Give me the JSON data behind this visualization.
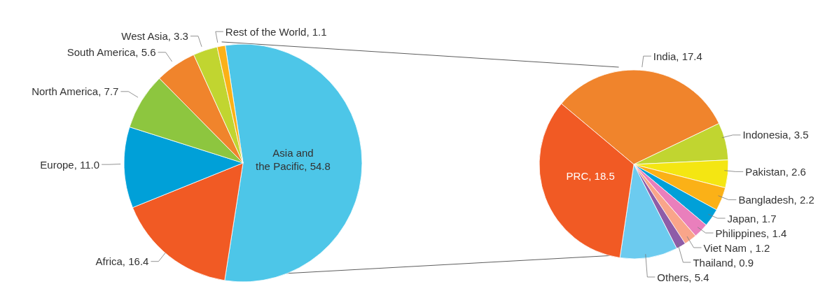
{
  "chart_data": [
    {
      "type": "pie",
      "categories": [
        "Asia and the Pacific",
        "Africa",
        "Europe",
        "North America",
        "South America",
        "West Asia",
        "Rest of the World"
      ],
      "values": [
        54.8,
        16.4,
        11.0,
        7.7,
        5.6,
        3.3,
        1.1
      ],
      "value_labels": [
        "54.8",
        "16.4",
        "11.0",
        "7.7",
        "5.6",
        "3.3",
        "1.1"
      ],
      "colors": [
        "#4dc6e8",
        "#f15a24",
        "#00a0d8",
        "#8dc63f",
        "#f0842c",
        "#c1d530",
        "#fbb117"
      ]
    },
    {
      "type": "pie",
      "categories": [
        "India",
        "Indonesia",
        "Pakistan",
        "Bangladesh",
        "Japan",
        "Philippines",
        "Viet Nam ",
        "Thailand",
        "Others",
        "PRC"
      ],
      "values": [
        17.4,
        3.5,
        2.6,
        2.2,
        1.7,
        1.4,
        1.2,
        0.9,
        5.4,
        18.5
      ],
      "value_labels": [
        "17.4",
        "3.5",
        "2.6",
        "2.2",
        "1.7",
        "1.4",
        "1.2",
        "0.9",
        "5.4",
        "18.5"
      ],
      "colors": [
        "#f0842c",
        "#c1d530",
        "#f4e612",
        "#fbb117",
        "#00a0d8",
        "#e97fbc",
        "#f9a58a",
        "#8e5ca8",
        "#6ccbef",
        "#f15a24"
      ]
    }
  ]
}
